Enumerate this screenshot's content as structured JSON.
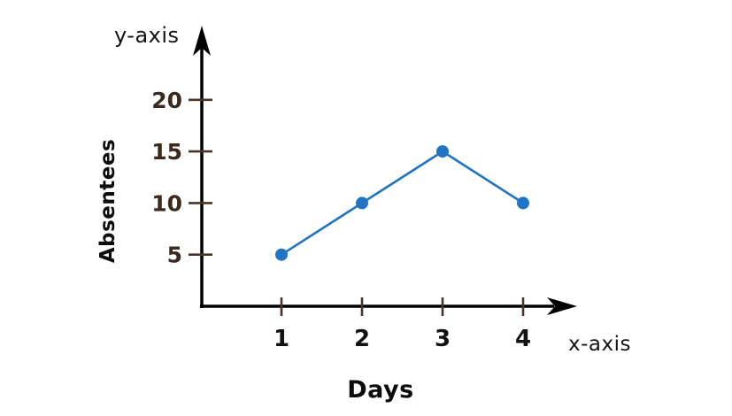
{
  "chart_data": {
    "type": "line",
    "title": "",
    "x_axis_name": "y-axis",
    "x_axis_name_note": "label printed beside the vertical arrow",
    "y_axis_name": "y-axis",
    "x_axis_annotation": "x-axis",
    "xlabel": "Days",
    "ylabel": "Absentees",
    "x": [
      1,
      2,
      3,
      4
    ],
    "values": [
      5,
      10,
      15,
      10
    ],
    "x_ticks": [
      "1",
      "2",
      "3",
      "4"
    ],
    "y_ticks": [
      "5",
      "10",
      "15",
      "20"
    ],
    "y_tick_values": [
      5,
      10,
      15,
      20
    ],
    "x_tick_values": [
      1,
      2,
      3,
      4
    ],
    "xlim": [
      0,
      4.6
    ],
    "ylim": [
      0,
      27
    ],
    "grid": false,
    "legend_position": "none",
    "colors": {
      "line": "#2273c4",
      "marker": "#2273c4",
      "axis": "#000000",
      "tick_mark": "#4a342a",
      "y_tick_label": "#3b2a1e",
      "x_tick_label": "#121212",
      "text": "#0d0d0d"
    }
  }
}
